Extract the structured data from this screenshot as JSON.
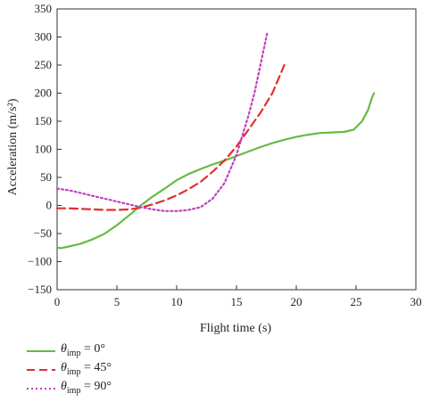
{
  "chart_data": {
    "type": "line",
    "title": "",
    "xlabel": "Flight time (s)",
    "ylabel": "Acceleration (m/s²)",
    "xlim": [
      0,
      30
    ],
    "ylim": [
      -150,
      350
    ],
    "xticks": [
      "0",
      "5",
      "10",
      "15",
      "20",
      "25",
      "30"
    ],
    "yticks": [
      "−150",
      "−100",
      "−50",
      "0",
      "50",
      "100",
      "150",
      "200",
      "250",
      "300",
      "350"
    ],
    "grid": false,
    "legend_position": "bottom-left, below plot",
    "series": [
      {
        "name": "θimp = 0°",
        "symbol": "θ",
        "subscript": "imp",
        "suffix": " = 0°",
        "color": "#66bb44",
        "dash": "solid",
        "x": [
          0,
          0.3,
          1,
          2,
          3,
          4,
          5,
          6,
          7,
          8,
          9,
          10,
          11,
          12,
          13,
          14,
          15,
          16,
          17,
          18,
          19,
          20,
          21,
          22,
          23,
          24,
          24.8,
          25.5,
          26,
          26.3,
          26.5
        ],
        "y": [
          -75,
          -76,
          -73,
          -68,
          -60,
          -50,
          -35,
          -18,
          0,
          16,
          30,
          45,
          56,
          65,
          73,
          80,
          88,
          96,
          104,
          111,
          117,
          122,
          126,
          129,
          130,
          131,
          135,
          150,
          170,
          190,
          200
        ]
      },
      {
        "name": "θimp = 45°",
        "symbol": "θ",
        "subscript": "imp",
        "suffix": " = 45°",
        "color": "#e03030",
        "dash": "dashed",
        "x": [
          0,
          1,
          2,
          3,
          4,
          5,
          6,
          7,
          8,
          9,
          10,
          11,
          12,
          13,
          14,
          15,
          16,
          17,
          18,
          18.5,
          19
        ],
        "y": [
          -5,
          -5,
          -6,
          -7,
          -8,
          -8,
          -7,
          -4,
          2,
          9,
          18,
          29,
          42,
          60,
          80,
          105,
          135,
          165,
          200,
          225,
          250
        ]
      },
      {
        "name": "θimp = 90°",
        "symbol": "θ",
        "subscript": "imp",
        "suffix": " = 90°",
        "color": "#c040c0",
        "dash": "dotted",
        "x": [
          0,
          1,
          2,
          3,
          4,
          5,
          6,
          7,
          8,
          9,
          10,
          11,
          12,
          13,
          14,
          15,
          16,
          16.5,
          17,
          17.3,
          17.6
        ],
        "y": [
          30,
          27,
          22,
          17,
          12,
          7,
          2,
          -3,
          -7,
          -10,
          -10,
          -8,
          -3,
          12,
          40,
          90,
          160,
          200,
          250,
          280,
          310
        ]
      }
    ]
  }
}
